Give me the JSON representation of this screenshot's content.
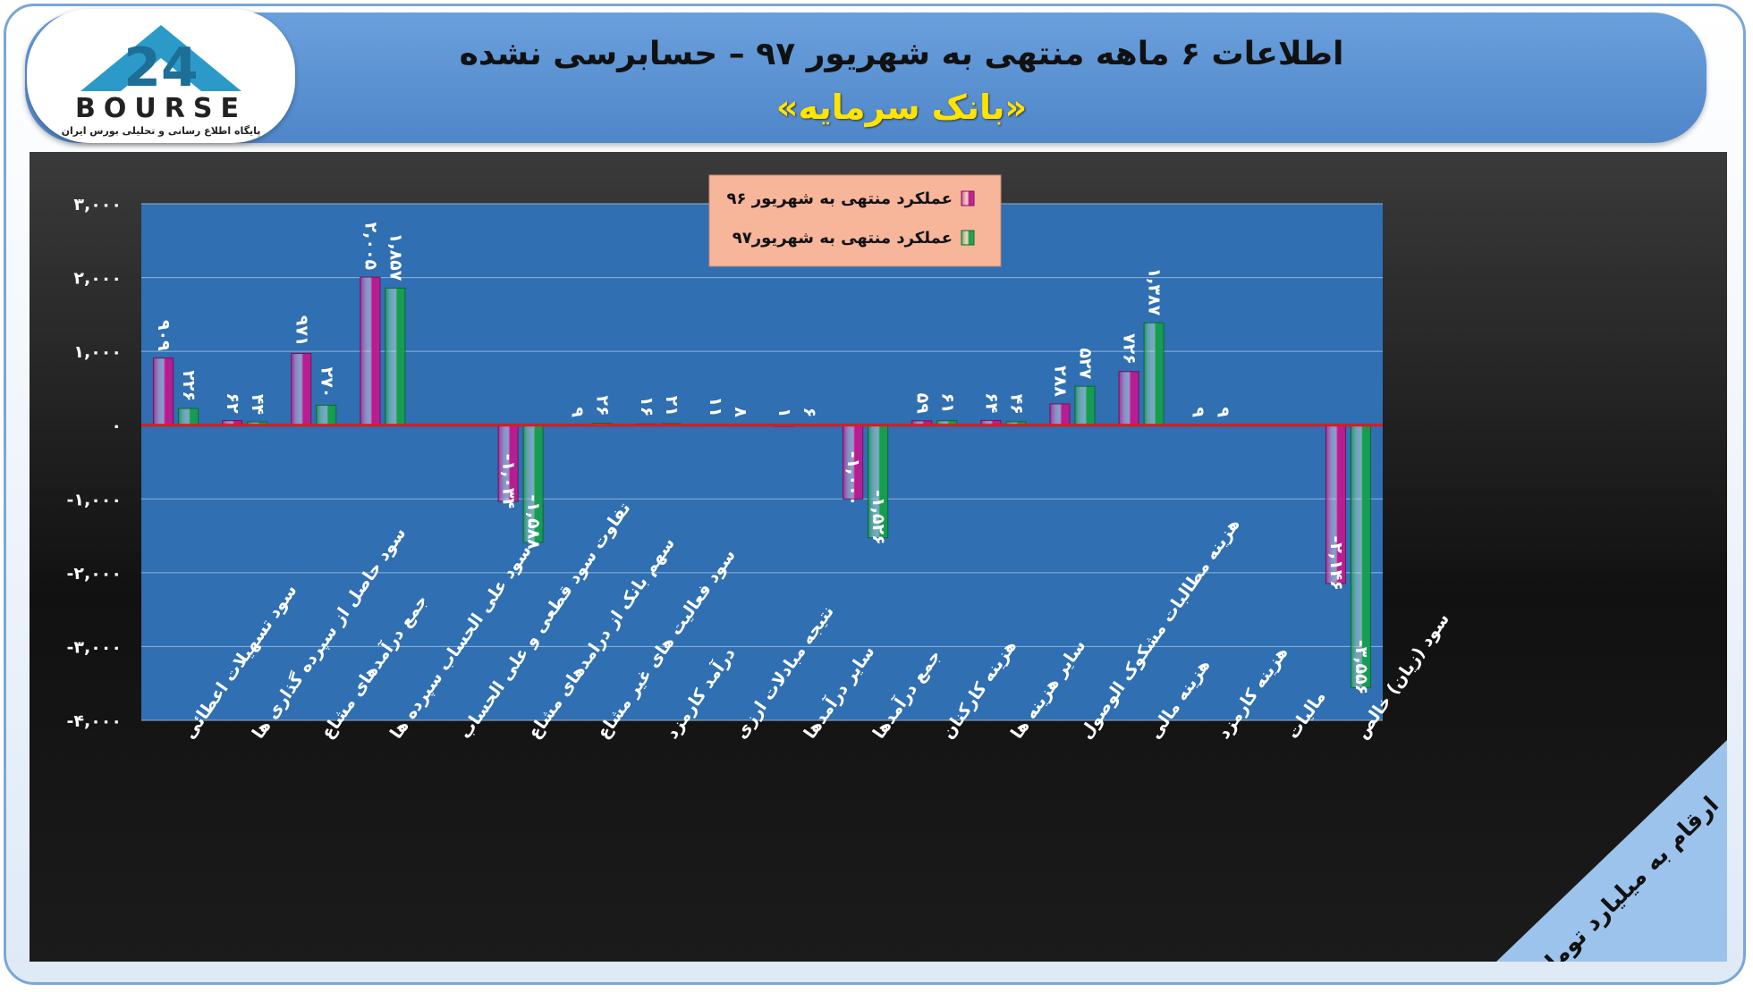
{
  "header": {
    "title": "اطلاعات ۶ ماهه منتهی به شهریور ۹۷ – حسابرسی نشده",
    "subtitle": "«بانک سرمایه»"
  },
  "logo": {
    "word": "BOURSE",
    "tagline": "پایگاه اطلاع رسانی و تحلیلی بورس ایران"
  },
  "colors": {
    "series1": "#c0188f",
    "series2": "#14a04a",
    "plot_bg": "#2f6fb2",
    "zero_line": "#e8141b",
    "legend_bg": "#f7b59a"
  },
  "chart_data": {
    "type": "bar",
    "unit_label": "ارقام به میلیارد تومان",
    "ylim": [
      -4000,
      3000
    ],
    "yticks": [
      3000,
      2000,
      1000,
      0,
      -1000,
      -2000,
      -3000,
      -4000
    ],
    "ytick_labels": [
      "۳,۰۰۰",
      "۲,۰۰۰",
      "۱,۰۰۰",
      "۰",
      "-۱,۰۰۰",
      "-۲,۰۰۰",
      "-۳,۰۰۰",
      "-۴,۰۰۰"
    ],
    "grid": true,
    "legend": "top-center",
    "categories": [
      "سود تسهیلات اعطائی",
      "سود حاصل از سپرده گذاری ها",
      "جمع درآمدهای مشاع",
      "سود علی الحساب سپرده ها",
      "تفاوت سود قطعی و علی الحساب",
      "سهم بانک از درامدهای مشاع",
      "سود فعالیت های غیر مشاع",
      "درآمد کارمزد",
      "نتیجه مبادلات ارزی",
      "سایر درآمدها",
      "جمع درآمدها",
      "هزینه کارکنان",
      "سایر هزینه ها",
      "هزینه مطالبات مشکوک الوصول",
      "هزینه مالی",
      "هزینه کارمزد",
      "مالیات",
      "سود (زیان) خالص"
    ],
    "series": [
      {
        "name": "عملکرد منتهی به شهریور ۹۶",
        "values": [
          909,
          62,
          971,
          2005,
          null,
          -1034,
          9,
          16,
          11,
          1,
          -1000,
          59,
          64,
          288,
          726,
          9,
          null,
          -2146
        ],
        "labels": [
          "۹۰۹",
          "۶۲",
          "۹۷۱",
          "۲,۰۰۵",
          "",
          "-۱,۰۳۴",
          "۹",
          "۱۶",
          "۱۱",
          "۱",
          "-۱,۰۰۰",
          "۵۹",
          "۶۴",
          "۲۸۸",
          "۷۲۶",
          "۹",
          "",
          "-۲,۱۴۶"
        ]
      },
      {
        "name": "عملکرد منتهی به شهریور۹۷",
        "values": [
          226,
          44,
          270,
          1857,
          null,
          -1588,
          26,
          21,
          8,
          6,
          -1526,
          61,
          46,
          527,
          1387,
          9,
          null,
          -3556
        ],
        "labels": [
          "۲۲۶",
          "۴۴",
          "۲۷۰",
          "۱,۸۵۷",
          "",
          "-۱,۵۸۸",
          "۲۶",
          "۲۱",
          "۸",
          "۶",
          "-۱,۵۲۶",
          "۶۱",
          "۴۶",
          "۵۲۷",
          "۱,۳۸۷",
          "۹",
          "",
          "-۳,۵۵۶"
        ]
      }
    ]
  }
}
